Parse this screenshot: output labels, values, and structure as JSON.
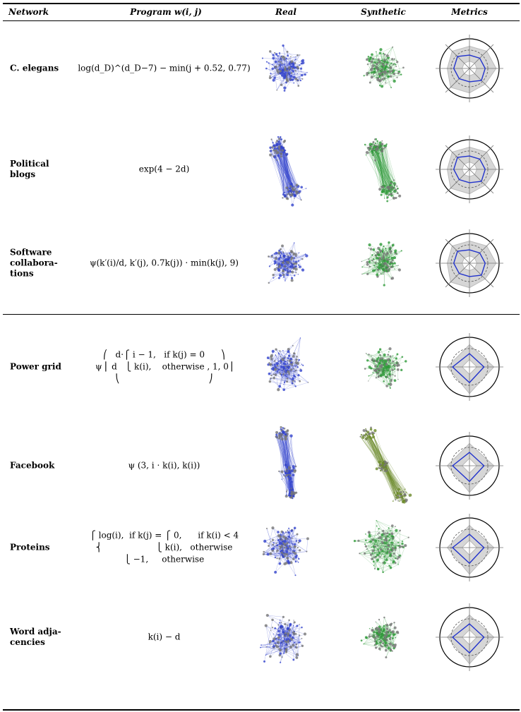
{
  "header": {
    "network": "Network",
    "program": "Program w(i, j)",
    "real": "Real",
    "synthetic": "Synthetic",
    "metrics": "Metrics"
  },
  "rows": [
    {
      "network": "C. elegans",
      "program": [
        "log(d_D)^(d_D−7) − min(j + 0.52, 0.77)"
      ]
    },
    {
      "network": "Political blogs",
      "program": [
        "exp(4 − 2d)"
      ]
    },
    {
      "network": "Software collabora-tions",
      "program": [
        "ψ(k′(i)/d, k′(j), 0.7k(j)) · min(k(j), 9)"
      ]
    },
    {
      "network": "Power grid",
      "program": [
        "⎛   d·⎧ i − 1,   if k(j) = 0      ⎞",
        "ψ ⎜ d   ⎩ k(i),    otherwise , 1, 0⎟",
        "⎝                                 ⎠"
      ]
    },
    {
      "network": "Facebook",
      "program": [
        "ψ (3, i · k(i), k(i))"
      ]
    },
    {
      "network": "Proteins",
      "program": [
        "⎧ log(i),  if k(j) = ⎧ 0,      if k(i) < 4",
        "⎨                    ⎩ k(i),   otherwise",
        "⎩ −1,     otherwise"
      ]
    },
    {
      "network": "Word adja-cencies",
      "program": [
        "k(i) − d"
      ]
    }
  ]
}
